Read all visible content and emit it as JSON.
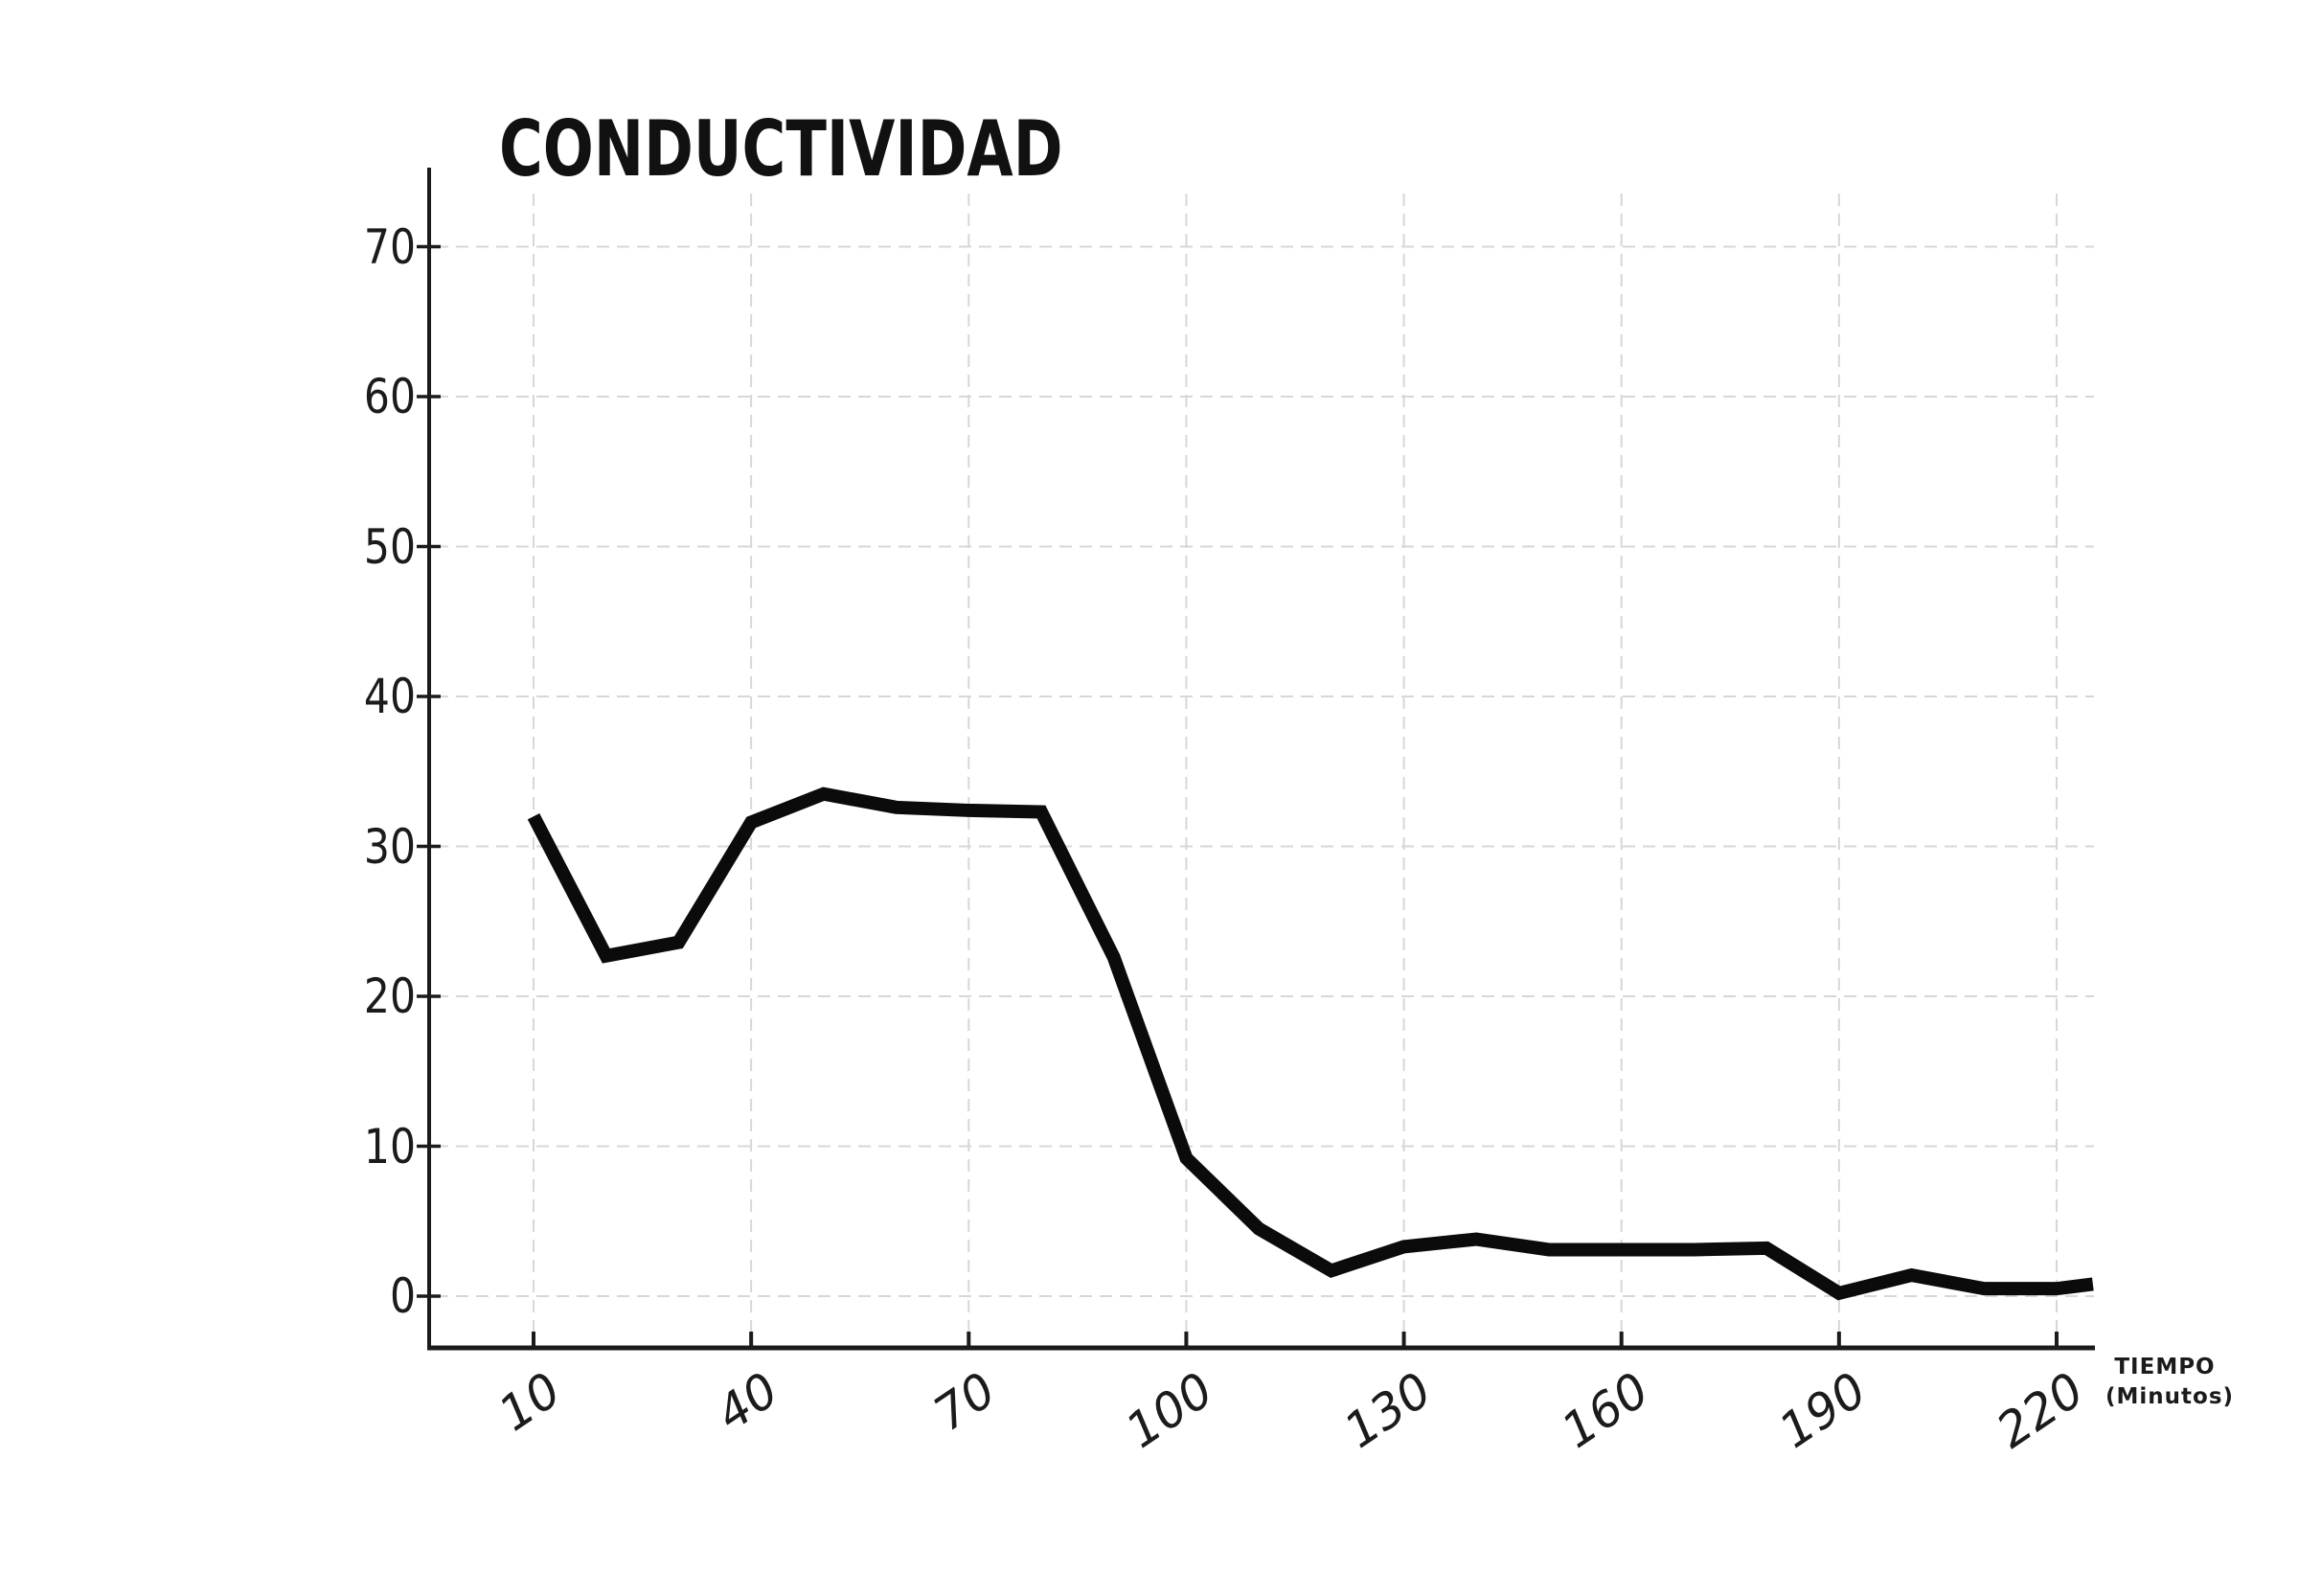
{
  "chart_data": {
    "type": "line",
    "title": "CONDUCTIVIDAD",
    "xlabel_lines": [
      "TIEMPO",
      "(Minutos)"
    ],
    "ylabel": "",
    "x_ticks": [
      10,
      40,
      70,
      100,
      130,
      160,
      190,
      220
    ],
    "y_ticks": [
      0,
      10,
      20,
      30,
      40,
      50,
      60,
      70
    ],
    "xlim": [
      -4.5,
      226
    ],
    "ylim": [
      -3.5,
      77
    ],
    "grid": "dashed",
    "legend": "none",
    "series": [
      {
        "name": "conductividad",
        "points": [
          [
            10,
            32.0
          ],
          [
            20,
            22.7
          ],
          [
            30,
            23.6
          ],
          [
            40,
            31.6
          ],
          [
            50,
            33.5
          ],
          [
            60,
            32.6
          ],
          [
            70,
            32.4
          ],
          [
            80,
            32.3
          ],
          [
            90,
            22.6
          ],
          [
            100,
            9.2
          ],
          [
            110,
            4.5
          ],
          [
            120,
            1.7
          ],
          [
            130,
            3.3
          ],
          [
            140,
            3.8
          ],
          [
            150,
            3.1
          ],
          [
            160,
            3.1
          ],
          [
            170,
            3.1
          ],
          [
            180,
            3.2
          ],
          [
            190,
            0.2
          ],
          [
            200,
            1.4
          ],
          [
            210,
            0.5
          ],
          [
            220,
            0.5
          ],
          [
            225,
            0.8
          ]
        ]
      }
    ],
    "colors": {
      "background": "#ffffff",
      "line": "#0b0b0b",
      "grid": "#d7d7d7",
      "axis": "#1b1b1b",
      "text": "#1b1b1b"
    }
  }
}
